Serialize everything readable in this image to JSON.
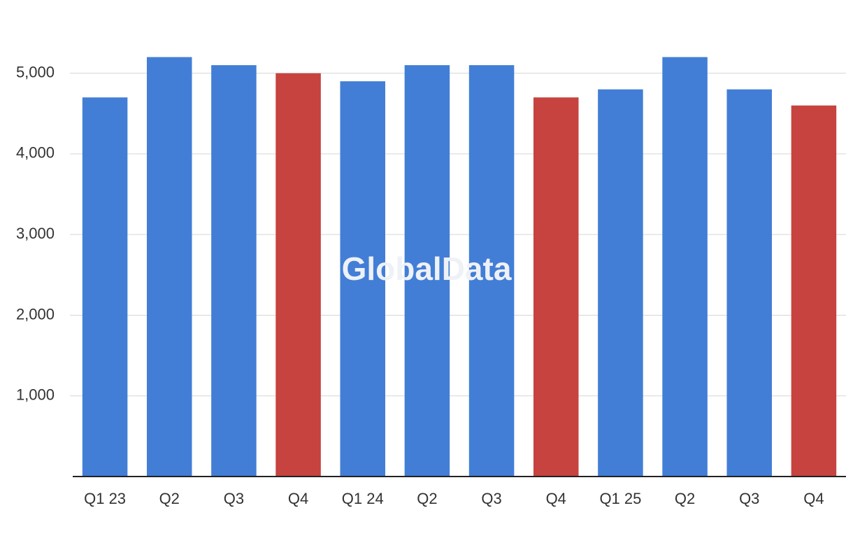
{
  "chart_data": {
    "type": "bar",
    "watermark": "GlobalData",
    "categories": [
      "Q1 23",
      "Q2",
      "Q3",
      "Q4",
      "Q1 24",
      "Q2",
      "Q3",
      "Q4",
      "Q1 25",
      "Q2",
      "Q3",
      "Q4"
    ],
    "values": [
      4700,
      5200,
      5100,
      5000,
      4900,
      5100,
      5100,
      4700,
      4800,
      5200,
      4800,
      4600
    ],
    "colors": [
      "#427ed6",
      "#427ed6",
      "#427ed6",
      "#c6433f",
      "#427ed6",
      "#427ed6",
      "#427ed6",
      "#c6433f",
      "#427ed6",
      "#427ed6",
      "#427ed6",
      "#c6433f"
    ],
    "ylim": [
      0,
      5500
    ],
    "yticks": [
      {
        "value": 1000,
        "label": "1,000"
      },
      {
        "value": 2000,
        "label": "2,000"
      },
      {
        "value": 3000,
        "label": "3,000"
      },
      {
        "value": 4000,
        "label": "4,000"
      },
      {
        "value": 5000,
        "label": "5,000"
      }
    ],
    "grid": true
  }
}
